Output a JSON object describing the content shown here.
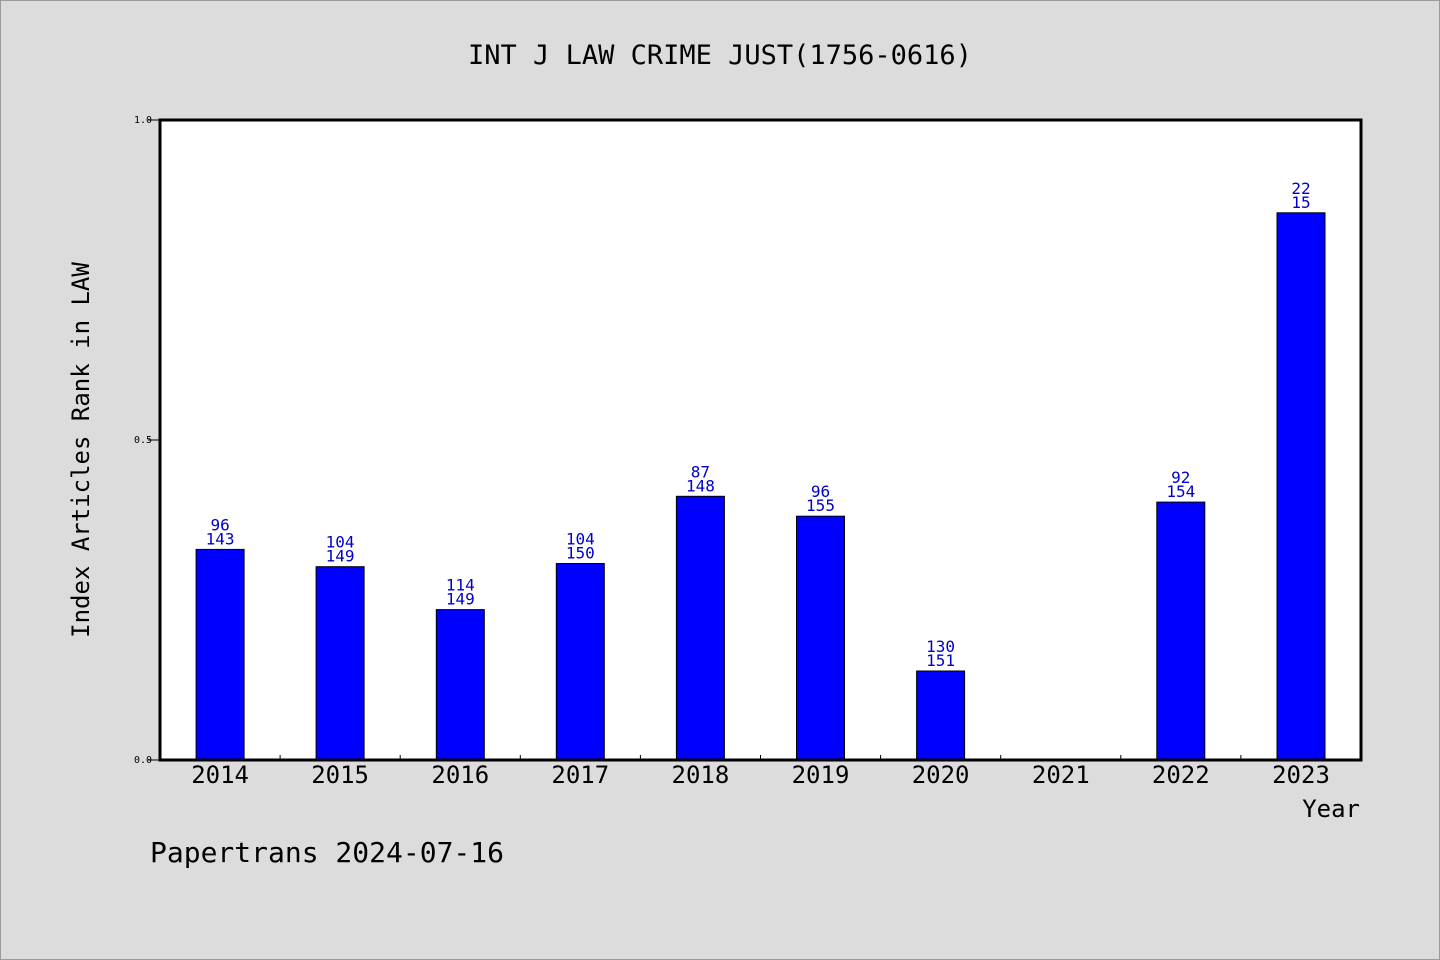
{
  "chart_data": {
    "type": "bar",
    "title": "INT J LAW CRIME JUST(1756-0616)",
    "xlabel": "Year",
    "ylabel": "Index Articles Rank in LAW",
    "ylim": [
      0,
      1
    ],
    "yticks": [
      "0.0",
      "0.5",
      "1.0"
    ],
    "categories": [
      "2014",
      "2015",
      "2016",
      "2017",
      "2018",
      "2019",
      "2020",
      "2021",
      "2022",
      "2023"
    ],
    "values": [
      0.329,
      0.302,
      0.235,
      0.307,
      0.412,
      0.381,
      0.139,
      null,
      0.403,
      0.855
    ],
    "labels_top": [
      "96",
      "104",
      "114",
      "104",
      "87",
      "96",
      "130",
      "",
      "92",
      "22"
    ],
    "labels_bottom": [
      "143",
      "149",
      "149",
      "150",
      "148",
      "155",
      "151",
      "",
      "154",
      "15"
    ],
    "bar_color": "#0000ff",
    "label_color": "#0000cc",
    "grid": false,
    "legend": "none"
  },
  "footer": "Papertrans 2024-07-16"
}
